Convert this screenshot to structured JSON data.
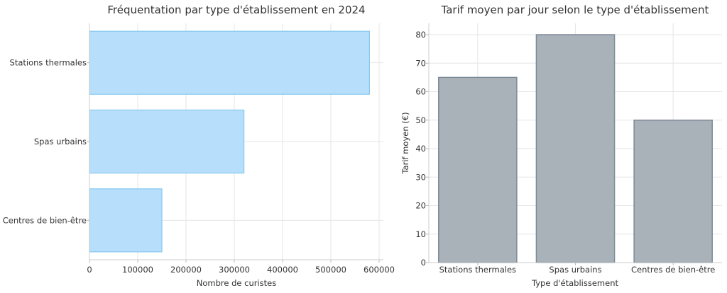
{
  "colors": {
    "left_bar_fill": "#b7dffb",
    "left_bar_stroke": "#86c8ee",
    "right_bar_fill": "#a9b1b9",
    "right_bar_stroke": "#7d8b99"
  },
  "chart_data": [
    {
      "type": "bar",
      "orientation": "horizontal",
      "title": "Fréquentation par type d'établissement en 2024",
      "categories": [
        "Stations thermales",
        "Spas urbains",
        "Centres de bien-être"
      ],
      "values": [
        580000,
        320000,
        150000
      ],
      "xlabel": "Nombre de curistes",
      "ylabel": "",
      "xlim": [
        0,
        600000
      ],
      "xticks": [
        "0",
        "100000",
        "200000",
        "300000",
        "400000",
        "500000",
        "600000"
      ],
      "grid": true
    },
    {
      "type": "bar",
      "orientation": "vertical",
      "title": "Tarif moyen par jour selon le type d'établissement",
      "categories": [
        "Stations thermales",
        "Spas urbains",
        "Centres de bien-être"
      ],
      "values": [
        65,
        80,
        50
      ],
      "xlabel": "Type d'établissement",
      "ylabel": "Tarif moyen (€)",
      "ylim": [
        0,
        80
      ],
      "yticks": [
        "0",
        "10",
        "20",
        "30",
        "40",
        "50",
        "60",
        "70",
        "80"
      ],
      "grid": true
    }
  ]
}
